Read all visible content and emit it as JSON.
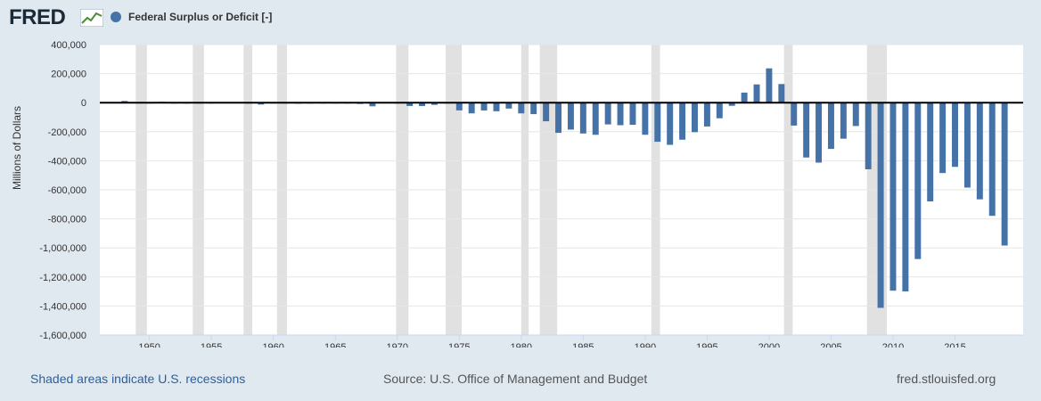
{
  "header": {
    "logo_text": "FRED",
    "logo_icon": "line-chart-icon",
    "legend_label": "Federal Surplus or Deficit [-]"
  },
  "colors": {
    "bar": "#4572a7",
    "recession": "#e1e1e1",
    "background": "#e1e9f0",
    "plot_bg": "#ffffff"
  },
  "footer": {
    "note": "Shaded areas indicate U.S. recessions",
    "source": "Source: U.S. Office of Management and Budget",
    "url": "fred.stlouisfed.org"
  },
  "chart_data": {
    "type": "bar",
    "title": "",
    "xlabel": "",
    "ylabel": "Millions of Dollars",
    "xlim": [
      1946,
      2020.5
    ],
    "ylim": [
      -1600000,
      400000
    ],
    "yticks": [
      400000,
      200000,
      0,
      -200000,
      -400000,
      -600000,
      -800000,
      -1000000,
      -1200000,
      -1400000,
      -1600000
    ],
    "ytick_labels": [
      "400,000",
      "200,000",
      "0",
      "-200,000",
      "-400,000",
      "-600,000",
      "-800,000",
      "-1,000,000",
      "-1,200,000",
      "-1,400,000",
      "-1,600,000"
    ],
    "xticks": [
      1950,
      1955,
      1960,
      1965,
      1970,
      1975,
      1980,
      1985,
      1990,
      1995,
      2000,
      2005,
      2010,
      2015
    ],
    "xtick_labels": [
      "1950",
      "1955",
      "1960",
      "1965",
      "1970",
      "1975",
      "1980",
      "1985",
      "1990",
      "1995",
      "2000",
      "2005",
      "2010",
      "2015"
    ],
    "grid": true,
    "recessions": [
      [
        1948.9,
        1949.8
      ],
      [
        1953.5,
        1954.4
      ],
      [
        1957.6,
        1958.3
      ],
      [
        1960.3,
        1961.1
      ],
      [
        1969.9,
        1970.9
      ],
      [
        1973.9,
        1975.2
      ],
      [
        1980.0,
        1980.6
      ],
      [
        1981.5,
        1982.9
      ],
      [
        1990.5,
        1991.2
      ],
      [
        2001.2,
        2001.9
      ],
      [
        2007.9,
        2009.5
      ]
    ],
    "series": [
      {
        "name": "Federal Surplus or Deficit [-]",
        "x": [
          1947,
          1948,
          1949,
          1950,
          1951,
          1952,
          1953,
          1954,
          1955,
          1956,
          1957,
          1958,
          1959,
          1960,
          1961,
          1962,
          1963,
          1964,
          1965,
          1966,
          1967,
          1968,
          1969,
          1970,
          1971,
          1972,
          1973,
          1974,
          1975,
          1976,
          1977,
          1978,
          1979,
          1980,
          1981,
          1982,
          1983,
          1984,
          1985,
          1986,
          1987,
          1988,
          1989,
          1990,
          1991,
          1992,
          1993,
          1994,
          1995,
          1996,
          1997,
          1998,
          1999,
          2000,
          2001,
          2002,
          2003,
          2004,
          2005,
          2006,
          2007,
          2008,
          2009,
          2010,
          2011,
          2012,
          2013,
          2014,
          2015,
          2016,
          2017,
          2018,
          2019
        ],
        "values": [
          4018,
          11796,
          580,
          -3119,
          6102,
          -1519,
          -6493,
          -1154,
          -2993,
          3947,
          3412,
          -2769,
          -12849,
          301,
          -3335,
          -7146,
          -4756,
          -5915,
          -1411,
          -3698,
          -8643,
          -25161,
          3242,
          -2842,
          -23033,
          -23373,
          -14908,
          -6135,
          -53242,
          -73732,
          -53659,
          -59185,
          -40726,
          -73830,
          -78968,
          -127977,
          -207802,
          -185367,
          -212308,
          -221227,
          -149730,
          -155178,
          -152639,
          -221036,
          -269238,
          -290321,
          -255051,
          -203186,
          -163952,
          -107431,
          -21884,
          69270,
          125610,
          236241,
          128236,
          -157758,
          -377585,
          -412727,
          -318346,
          -248181,
          -160701,
          -458553,
          -1412688,
          -1294373,
          -1299599,
          -1076573,
          -679775,
          -484602,
          -441960,
          -584651,
          -665446,
          -779137,
          -983594
        ]
      }
    ]
  }
}
